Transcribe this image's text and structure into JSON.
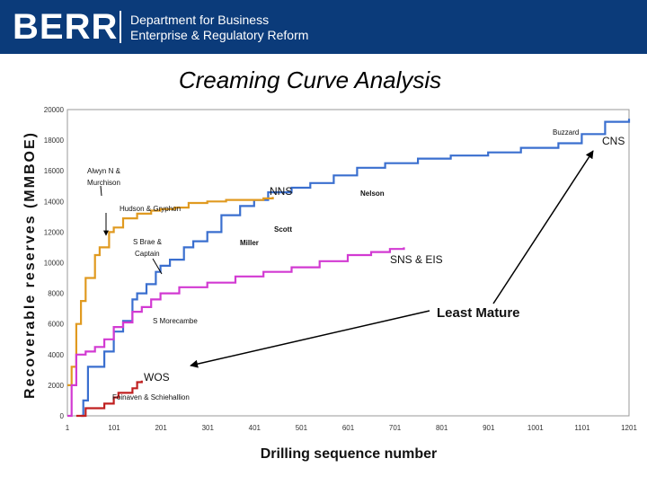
{
  "header": {
    "logo": "BERR",
    "dept_line1": "Department for Business",
    "dept_line2": "Enterprise & Regulatory Reform",
    "background": "#0b3b7a"
  },
  "chart_data": {
    "type": "line",
    "title": "Creaming Curve Analysis",
    "xlabel": "Drilling sequence number",
    "ylabel": "Recoverable reserves (MMBOE)",
    "xlim": [
      1,
      1201
    ],
    "ylim": [
      0,
      20000
    ],
    "xticks": [
      1,
      101,
      201,
      301,
      401,
      501,
      601,
      701,
      801,
      901,
      1001,
      1101,
      1201
    ],
    "yticks": [
      0,
      2000,
      4000,
      6000,
      8000,
      10000,
      12000,
      14000,
      16000,
      18000,
      20000
    ],
    "series": [
      {
        "name": "CNS",
        "color": "#3a6fcf",
        "points": [
          [
            30,
            0
          ],
          [
            35,
            1000
          ],
          [
            40,
            1000
          ],
          [
            45,
            3200
          ],
          [
            70,
            3200
          ],
          [
            80,
            4200
          ],
          [
            100,
            5500
          ],
          [
            120,
            6200
          ],
          [
            140,
            7600
          ],
          [
            150,
            8000
          ],
          [
            170,
            8600
          ],
          [
            190,
            9400
          ],
          [
            200,
            9800
          ],
          [
            220,
            10200
          ],
          [
            250,
            11000
          ],
          [
            270,
            11400
          ],
          [
            300,
            12000
          ],
          [
            330,
            13100
          ],
          [
            370,
            13700
          ],
          [
            400,
            14100
          ],
          [
            430,
            14600
          ],
          [
            480,
            14900
          ],
          [
            520,
            15200
          ],
          [
            570,
            15700
          ],
          [
            620,
            16200
          ],
          [
            680,
            16500
          ],
          [
            750,
            16800
          ],
          [
            820,
            17000
          ],
          [
            900,
            17200
          ],
          [
            970,
            17500
          ],
          [
            1050,
            17800
          ],
          [
            1100,
            18400
          ],
          [
            1150,
            19200
          ],
          [
            1201,
            19400
          ]
        ]
      },
      {
        "name": "NNS",
        "color": "#e09a20",
        "points": [
          [
            1,
            2000
          ],
          [
            10,
            3200
          ],
          [
            20,
            6000
          ],
          [
            30,
            7500
          ],
          [
            40,
            9000
          ],
          [
            60,
            10500
          ],
          [
            70,
            11000
          ],
          [
            90,
            12000
          ],
          [
            100,
            12300
          ],
          [
            120,
            12900
          ],
          [
            150,
            13200
          ],
          [
            180,
            13400
          ],
          [
            200,
            13500
          ],
          [
            230,
            13600
          ],
          [
            260,
            13900
          ],
          [
            300,
            14000
          ],
          [
            340,
            14100
          ],
          [
            380,
            14100
          ],
          [
            420,
            14200
          ],
          [
            440,
            14300
          ]
        ]
      },
      {
        "name": "SNS & EIS",
        "color": "#d23ad2",
        "points": [
          [
            1,
            0
          ],
          [
            10,
            2000
          ],
          [
            20,
            4000
          ],
          [
            40,
            4200
          ],
          [
            60,
            4500
          ],
          [
            80,
            5000
          ],
          [
            100,
            5800
          ],
          [
            120,
            6100
          ],
          [
            140,
            6800
          ],
          [
            160,
            7100
          ],
          [
            180,
            7600
          ],
          [
            200,
            8000
          ],
          [
            240,
            8400
          ],
          [
            300,
            8700
          ],
          [
            360,
            9100
          ],
          [
            420,
            9400
          ],
          [
            480,
            9700
          ],
          [
            540,
            10100
          ],
          [
            600,
            10500
          ],
          [
            650,
            10700
          ],
          [
            690,
            10900
          ],
          [
            720,
            11000
          ]
        ]
      },
      {
        "name": "WOS",
        "color": "#c02020",
        "points": [
          [
            20,
            0
          ],
          [
            40,
            500
          ],
          [
            80,
            800
          ],
          [
            100,
            1200
          ],
          [
            110,
            1500
          ],
          [
            140,
            1800
          ],
          [
            150,
            2200
          ],
          [
            160,
            2300
          ]
        ]
      }
    ],
    "annotations": [
      "Alwyn N & Murchison",
      "Hudson & Gryphon",
      "S Brae & Captain",
      "Miller",
      "Scott",
      "Nelson",
      "Buzzard",
      "S Morecambe",
      "Foinaven & Schiehallion"
    ],
    "series_labels": [
      "NNS",
      "CNS",
      "SNS & EIS",
      "WOS"
    ],
    "callout": "Least Mature"
  }
}
